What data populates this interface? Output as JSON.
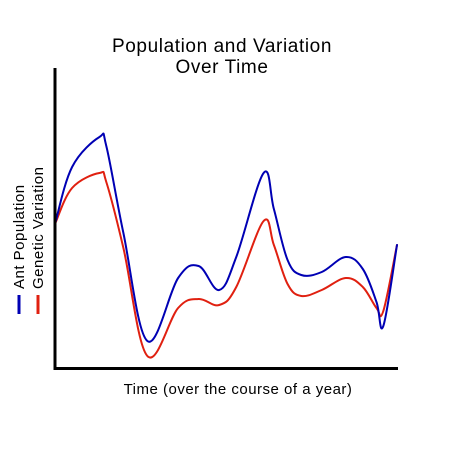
{
  "chart_data": {
    "type": "line",
    "title": "Population and Variation Over Time",
    "title_lines": [
      "Population and Variation",
      "Over Time"
    ],
    "xlabel": "Time (over the course of a year)",
    "ylabel": "",
    "xlim": [
      0,
      100
    ],
    "ylim": [
      0,
      100
    ],
    "grid": false,
    "legend_position": "left-vertical",
    "x": [
      0,
      5,
      13,
      15,
      20,
      27,
      36,
      42,
      48,
      53,
      61,
      64,
      68,
      72,
      78,
      85,
      90,
      94,
      96,
      100
    ],
    "series": [
      {
        "name": "Ant Population",
        "color": "#0000b4",
        "values": [
          48,
          67,
          77,
          74,
          45,
          9,
          30,
          34,
          26,
          37,
          65,
          53,
          36,
          31,
          32,
          37,
          33,
          22,
          14,
          41
        ]
      },
      {
        "name": "Genetic Variation",
        "color": "#e02010",
        "values": [
          48,
          60,
          65,
          62,
          40,
          4,
          20,
          23,
          21,
          27,
          49,
          41,
          28,
          24,
          26,
          30,
          27,
          20,
          19,
          41
        ]
      }
    ],
    "axis_color": "#000000"
  }
}
